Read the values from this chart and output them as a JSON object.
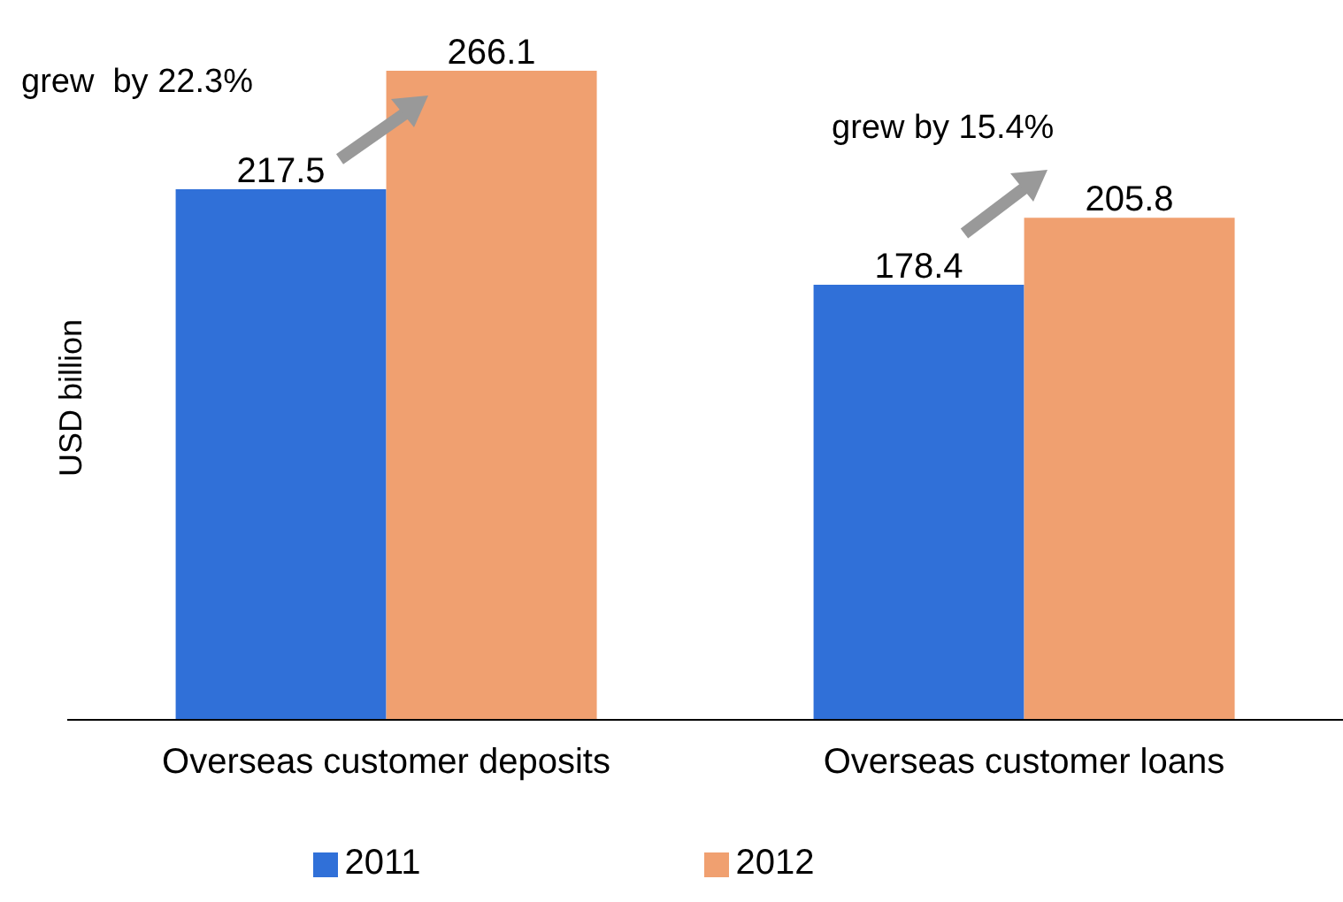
{
  "chart_data": {
    "type": "bar",
    "ylabel": "USD billion",
    "categories": [
      "Overseas customer deposits",
      "Overseas customer loans"
    ],
    "series": [
      {
        "name": "2011",
        "color": "#3070d8",
        "values": [
          217.5,
          178.4
        ]
      },
      {
        "name": "2012",
        "color": "#f0a070",
        "values": [
          266.1,
          205.8
        ]
      }
    ],
    "tick_labels": "x",
    "data_labels": true,
    "legend": "bottom",
    "grid": false,
    "annotations": [
      "grew  by 22.3%",
      "grew by 15.4%"
    ]
  }
}
